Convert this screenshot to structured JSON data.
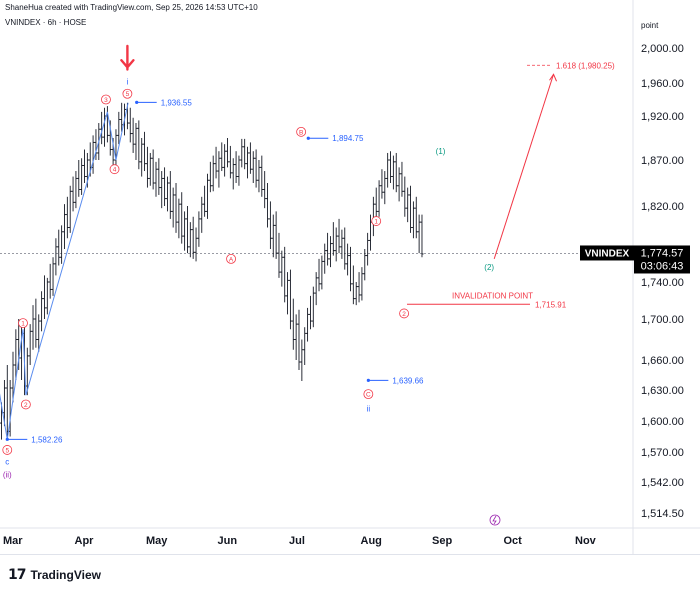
{
  "header": {
    "created": "ShaneHua created with TradingView.com, Sep 25, 2026 14:53 UTC+10"
  },
  "footer": {
    "brand": "TradingView",
    "brand_mark": "17"
  },
  "chart_data": {
    "type": "candlestick",
    "symbol_line": "VNINDEX · 6h · HOSE",
    "price_axis_label": "point",
    "y_ticks": [
      "2,000.00",
      "1,960.00",
      "1,920.00",
      "1,870.00",
      "1,820.00",
      "1,780.00",
      "1,740.00",
      "1,700.00",
      "1,660.00",
      "1,630.00",
      "1,600.00",
      "1,570.00",
      "1,542.00",
      "1,514.50"
    ],
    "x_ticks": [
      "Mar",
      "Apr",
      "May",
      "Jun",
      "Jul",
      "Aug",
      "Sep",
      "Oct",
      "Nov"
    ],
    "last_price": {
      "symbol": "VNINDEX",
      "value": "1,774.57",
      "countdown": "03:06:43"
    },
    "price_labels": [
      {
        "text": "1,936.55",
        "price": 1936.55,
        "month": 1.73
      },
      {
        "text": "1,894.75",
        "price": 1894.75,
        "month": 4.13
      },
      {
        "text": "1,582.26",
        "price": 1582.26,
        "month": -0.08
      },
      {
        "text": "1,639.66",
        "price": 1639.66,
        "month": 4.97
      },
      {
        "text": "1,715.91",
        "price": 1715.91,
        "month": 5.85
      }
    ],
    "annotations": {
      "invalidation": "INVALIDATION POINT",
      "invalidation_price": "1,715.91",
      "fib_target": "1.618 (1,980.25)",
      "fib_price": 1980.25,
      "wave_labels": [
        {
          "text": "2",
          "kind": "circle-red",
          "price": 1904,
          "month": -1.05
        },
        {
          "text": "3",
          "kind": "circle-red",
          "price": 1608,
          "month": -0.73
        },
        {
          "text": "4",
          "kind": "circle-red",
          "price": 1754,
          "month": -0.47
        },
        {
          "text": "5",
          "kind": "circle-red",
          "price": 1572,
          "month": -0.08
        },
        {
          "text": "c",
          "kind": "plain-blue",
          "price": 1561,
          "month": -0.08
        },
        {
          "text": "(ii)",
          "kind": "plain-purple",
          "price": 1549,
          "month": -0.08
        },
        {
          "text": "1",
          "kind": "circle-red",
          "price": 1696,
          "month": 0.14
        },
        {
          "text": "2",
          "kind": "circle-red",
          "price": 1616,
          "month": 0.18
        },
        {
          "text": "3",
          "kind": "circle-red",
          "price": 1940,
          "month": 1.3
        },
        {
          "text": "4",
          "kind": "circle-red",
          "price": 1860,
          "month": 1.42
        },
        {
          "text": "5",
          "kind": "circle-red",
          "price": 1947,
          "month": 1.6
        },
        {
          "text": "i",
          "kind": "plain-blue",
          "price": 1962,
          "month": 1.6
        },
        {
          "text": "A",
          "kind": "circle-red",
          "price": 1768,
          "month": 3.05
        },
        {
          "text": "B",
          "kind": "circle-red",
          "price": 1902,
          "month": 4.03
        },
        {
          "text": "C",
          "kind": "circle-red",
          "price": 1626,
          "month": 4.97
        },
        {
          "text": "ii",
          "kind": "plain-blue",
          "price": 1612,
          "month": 4.97
        },
        {
          "text": "1",
          "kind": "circle-red",
          "price": 1806,
          "month": 5.08
        },
        {
          "text": "2",
          "kind": "circle-red",
          "price": 1706,
          "month": 5.47
        },
        {
          "text": "(1)",
          "kind": "plain-green",
          "price": 1880,
          "month": 5.98
        },
        {
          "text": "(2)",
          "kind": "plain-green",
          "price": 1758,
          "month": 6.66
        }
      ]
    },
    "colors": {
      "red": "#f23645",
      "blue": "#2962ff",
      "green": "#089981",
      "purple": "#9c27b0",
      "candle": "#131722",
      "line_blue": "#5b8def"
    },
    "wave_path": [
      [
        -1.09,
        1898
      ],
      [
        -0.73,
        1630
      ],
      [
        -0.47,
        1750
      ],
      [
        -0.08,
        1582
      ],
      [
        0.14,
        1690
      ],
      [
        0.18,
        1625
      ],
      [
        1.32,
        1925
      ],
      [
        1.44,
        1870
      ],
      [
        1.61,
        1936
      ]
    ],
    "target_path": [
      [
        6.73,
        1768
      ],
      [
        7.56,
        1970
      ]
    ],
    "candles": [
      [
        -1.09,
        1820,
        1898,
        1808,
        1858
      ],
      [
        -1.05,
        1858,
        1900,
        1840,
        1870
      ],
      [
        -1.0,
        1870,
        1886,
        1806,
        1812
      ],
      [
        -0.96,
        1812,
        1845,
        1745,
        1775
      ],
      [
        -0.92,
        1775,
        1830,
        1748,
        1810
      ],
      [
        -0.88,
        1810,
        1825,
        1720,
        1735
      ],
      [
        -0.84,
        1735,
        1765,
        1680,
        1700
      ],
      [
        -0.8,
        1700,
        1740,
        1640,
        1660
      ],
      [
        -0.76,
        1660,
        1720,
        1625,
        1715
      ],
      [
        -0.72,
        1715,
        1745,
        1650,
        1668
      ],
      [
        -0.68,
        1668,
        1735,
        1655,
        1726
      ],
      [
        -0.64,
        1726,
        1752,
        1690,
        1702
      ],
      [
        -0.6,
        1702,
        1740,
        1675,
        1688
      ],
      [
        -0.56,
        1688,
        1710,
        1642,
        1652
      ],
      [
        -0.52,
        1652,
        1698,
        1625,
        1690
      ],
      [
        -0.48,
        1690,
        1720,
        1660,
        1668
      ],
      [
        -0.44,
        1668,
        1690,
        1612,
        1622
      ],
      [
        -0.4,
        1622,
        1665,
        1600,
        1655
      ],
      [
        -0.36,
        1655,
        1680,
        1605,
        1612
      ],
      [
        -0.32,
        1612,
        1650,
        1592,
        1640
      ],
      [
        -0.28,
        1640,
        1668,
        1615,
        1620
      ],
      [
        -0.24,
        1620,
        1645,
        1598,
        1604
      ],
      [
        -0.2,
        1604,
        1630,
        1586,
        1598
      ],
      [
        -0.16,
        1598,
        1618,
        1582,
        1608
      ],
      [
        -0.12,
        1608,
        1640,
        1595,
        1632
      ],
      [
        -0.08,
        1632,
        1655,
        1582,
        1590
      ],
      [
        -0.04,
        1590,
        1640,
        1585,
        1632
      ],
      [
        0.0,
        1632,
        1668,
        1618,
        1655
      ],
      [
        0.04,
        1655,
        1690,
        1640,
        1680
      ],
      [
        0.08,
        1680,
        1700,
        1650,
        1662
      ],
      [
        0.12,
        1662,
        1692,
        1640,
        1686
      ],
      [
        0.16,
        1686,
        1700,
        1625,
        1634
      ],
      [
        0.2,
        1634,
        1672,
        1625,
        1664
      ],
      [
        0.24,
        1664,
        1695,
        1655,
        1688
      ],
      [
        0.28,
        1688,
        1715,
        1670,
        1700
      ],
      [
        0.32,
        1700,
        1722,
        1672,
        1680
      ],
      [
        0.36,
        1680,
        1705,
        1668,
        1698
      ],
      [
        0.4,
        1698,
        1730,
        1688,
        1722
      ],
      [
        0.44,
        1722,
        1748,
        1700,
        1712
      ],
      [
        0.48,
        1712,
        1745,
        1705,
        1740
      ],
      [
        0.52,
        1740,
        1762,
        1722,
        1732
      ],
      [
        0.56,
        1732,
        1770,
        1725,
        1762
      ],
      [
        0.6,
        1762,
        1790,
        1748,
        1782
      ],
      [
        0.64,
        1782,
        1798,
        1760,
        1770
      ],
      [
        0.68,
        1770,
        1802,
        1762,
        1796
      ],
      [
        0.72,
        1796,
        1822,
        1780,
        1812
      ],
      [
        0.76,
        1812,
        1830,
        1790,
        1800
      ],
      [
        0.8,
        1800,
        1842,
        1795,
        1836
      ],
      [
        0.84,
        1836,
        1852,
        1815,
        1824
      ],
      [
        0.88,
        1824,
        1858,
        1818,
        1850
      ],
      [
        0.92,
        1850,
        1870,
        1830,
        1838
      ],
      [
        0.96,
        1838,
        1872,
        1832,
        1864
      ],
      [
        1.0,
        1864,
        1882,
        1845,
        1852
      ],
      [
        1.04,
        1852,
        1878,
        1840,
        1870
      ],
      [
        1.08,
        1870,
        1890,
        1852,
        1862
      ],
      [
        1.12,
        1862,
        1898,
        1855,
        1890
      ],
      [
        1.16,
        1890,
        1905,
        1870,
        1878
      ],
      [
        1.2,
        1878,
        1912,
        1870,
        1905
      ],
      [
        1.24,
        1905,
        1925,
        1888,
        1896
      ],
      [
        1.28,
        1896,
        1930,
        1885,
        1920
      ],
      [
        1.32,
        1920,
        1932,
        1890,
        1898
      ],
      [
        1.36,
        1898,
        1915,
        1875,
        1882
      ],
      [
        1.4,
        1882,
        1895,
        1860,
        1870
      ],
      [
        1.44,
        1870,
        1905,
        1862,
        1898
      ],
      [
        1.48,
        1898,
        1925,
        1888,
        1916
      ],
      [
        1.52,
        1916,
        1936,
        1902,
        1910
      ],
      [
        1.56,
        1910,
        1935,
        1898,
        1928
      ],
      [
        1.6,
        1928,
        1936,
        1905,
        1912
      ],
      [
        1.64,
        1912,
        1930,
        1890,
        1900
      ],
      [
        1.68,
        1900,
        1918,
        1878,
        1888
      ],
      [
        1.72,
        1888,
        1912,
        1870,
        1906
      ],
      [
        1.76,
        1906,
        1915,
        1860,
        1868
      ],
      [
        1.8,
        1868,
        1895,
        1852,
        1888
      ],
      [
        1.84,
        1888,
        1902,
        1858,
        1866
      ],
      [
        1.88,
        1866,
        1885,
        1840,
        1850
      ],
      [
        1.92,
        1850,
        1878,
        1842,
        1872
      ],
      [
        1.96,
        1872,
        1882,
        1838,
        1845
      ],
      [
        2.0,
        1845,
        1868,
        1830,
        1860
      ],
      [
        2.04,
        1860,
        1872,
        1832,
        1840
      ],
      [
        2.08,
        1840,
        1858,
        1818,
        1850
      ],
      [
        2.12,
        1850,
        1862,
        1820,
        1828
      ],
      [
        2.16,
        1828,
        1852,
        1815,
        1845
      ],
      [
        2.2,
        1845,
        1858,
        1808,
        1815
      ],
      [
        2.24,
        1815,
        1840,
        1800,
        1832
      ],
      [
        2.28,
        1832,
        1845,
        1795,
        1805
      ],
      [
        2.32,
        1805,
        1828,
        1790,
        1822
      ],
      [
        2.36,
        1822,
        1835,
        1785,
        1792
      ],
      [
        2.4,
        1792,
        1815,
        1778,
        1808
      ],
      [
        2.44,
        1808,
        1820,
        1775,
        1782
      ],
      [
        2.48,
        1782,
        1805,
        1770,
        1798
      ],
      [
        2.52,
        1798,
        1810,
        1768,
        1776
      ],
      [
        2.56,
        1776,
        1800,
        1765,
        1790
      ],
      [
        2.6,
        1790,
        1815,
        1782,
        1808
      ],
      [
        2.64,
        1808,
        1830,
        1795,
        1822
      ],
      [
        2.68,
        1822,
        1842,
        1810,
        1815
      ],
      [
        2.72,
        1815,
        1855,
        1808,
        1848
      ],
      [
        2.76,
        1848,
        1868,
        1835,
        1842
      ],
      [
        2.8,
        1842,
        1875,
        1836,
        1866
      ],
      [
        2.84,
        1866,
        1885,
        1850,
        1858
      ],
      [
        2.88,
        1858,
        1880,
        1840,
        1872
      ],
      [
        2.92,
        1872,
        1890,
        1858,
        1862
      ],
      [
        2.96,
        1862,
        1888,
        1852,
        1880
      ],
      [
        3.0,
        1880,
        1895,
        1862,
        1868
      ],
      [
        3.04,
        1868,
        1886,
        1850,
        1856
      ],
      [
        3.08,
        1856,
        1872,
        1838,
        1865
      ],
      [
        3.12,
        1865,
        1880,
        1845,
        1852
      ],
      [
        3.16,
        1852,
        1875,
        1842,
        1870
      ],
      [
        3.2,
        1870,
        1894,
        1862,
        1885
      ],
      [
        3.24,
        1885,
        1894,
        1860,
        1866
      ],
      [
        3.28,
        1866,
        1885,
        1850,
        1878
      ],
      [
        3.32,
        1878,
        1890,
        1855,
        1860
      ],
      [
        3.36,
        1860,
        1880,
        1845,
        1872
      ],
      [
        3.4,
        1872,
        1882,
        1840,
        1848
      ],
      [
        3.44,
        1848,
        1870,
        1835,
        1862
      ],
      [
        3.48,
        1862,
        1875,
        1830,
        1838
      ],
      [
        3.52,
        1838,
        1858,
        1818,
        1828
      ],
      [
        3.56,
        1828,
        1845,
        1800,
        1808
      ],
      [
        3.6,
        1808,
        1825,
        1780,
        1790
      ],
      [
        3.64,
        1790,
        1812,
        1770,
        1802
      ],
      [
        3.68,
        1802,
        1815,
        1768,
        1775
      ],
      [
        3.72,
        1775,
        1795,
        1745,
        1752
      ],
      [
        3.76,
        1752,
        1778,
        1735,
        1770
      ],
      [
        3.8,
        1770,
        1782,
        1718,
        1725
      ],
      [
        3.84,
        1725,
        1752,
        1705,
        1742
      ],
      [
        3.88,
        1742,
        1755,
        1690,
        1698
      ],
      [
        3.92,
        1698,
        1722,
        1670,
        1680
      ],
      [
        3.96,
        1680,
        1705,
        1660,
        1695
      ],
      [
        4.0,
        1695,
        1710,
        1650,
        1658
      ],
      [
        4.04,
        1658,
        1680,
        1639,
        1670
      ],
      [
        4.08,
        1670,
        1692,
        1655,
        1686
      ],
      [
        4.12,
        1686,
        1712,
        1678,
        1705
      ],
      [
        4.16,
        1705,
        1725,
        1690,
        1698
      ],
      [
        4.2,
        1698,
        1735,
        1692,
        1728
      ],
      [
        4.24,
        1728,
        1752,
        1715,
        1745
      ],
      [
        4.28,
        1745,
        1768,
        1730,
        1738
      ],
      [
        4.32,
        1738,
        1772,
        1732,
        1765
      ],
      [
        4.36,
        1765,
        1785,
        1750,
        1778
      ],
      [
        4.4,
        1778,
        1795,
        1760,
        1768
      ],
      [
        4.44,
        1768,
        1792,
        1758,
        1785
      ],
      [
        4.48,
        1785,
        1805,
        1772,
        1778
      ],
      [
        4.52,
        1778,
        1800,
        1765,
        1792
      ],
      [
        4.56,
        1792,
        1808,
        1775,
        1782
      ],
      [
        4.6,
        1782,
        1798,
        1768,
        1790
      ],
      [
        4.64,
        1790,
        1800,
        1755,
        1762
      ],
      [
        4.68,
        1762,
        1785,
        1748,
        1772
      ],
      [
        4.72,
        1772,
        1782,
        1730,
        1738
      ],
      [
        4.76,
        1738,
        1760,
        1716,
        1722
      ],
      [
        4.8,
        1722,
        1740,
        1715,
        1735
      ],
      [
        4.84,
        1735,
        1752,
        1718,
        1726
      ],
      [
        4.88,
        1726,
        1758,
        1720,
        1750
      ],
      [
        4.92,
        1750,
        1780,
        1742,
        1772
      ],
      [
        4.96,
        1772,
        1795,
        1760,
        1788
      ],
      [
        5.0,
        1788,
        1812,
        1778,
        1805
      ],
      [
        5.04,
        1805,
        1830,
        1792,
        1822
      ],
      [
        5.08,
        1822,
        1840,
        1808,
        1815
      ],
      [
        5.12,
        1815,
        1848,
        1810,
        1842
      ],
      [
        5.16,
        1842,
        1860,
        1828,
        1835
      ],
      [
        5.2,
        1835,
        1858,
        1822,
        1850
      ],
      [
        5.24,
        1850,
        1878,
        1840,
        1870
      ],
      [
        5.28,
        1870,
        1880,
        1845,
        1852
      ],
      [
        5.32,
        1852,
        1875,
        1838,
        1868
      ],
      [
        5.36,
        1868,
        1878,
        1835,
        1842
      ],
      [
        5.4,
        1842,
        1862,
        1825,
        1855
      ],
      [
        5.44,
        1855,
        1868,
        1830,
        1836
      ],
      [
        5.48,
        1836,
        1852,
        1810,
        1818
      ],
      [
        5.52,
        1818,
        1840,
        1805,
        1832
      ],
      [
        5.56,
        1832,
        1842,
        1795,
        1800
      ],
      [
        5.6,
        1800,
        1825,
        1790,
        1818
      ],
      [
        5.64,
        1818,
        1830,
        1790,
        1796
      ],
      [
        5.68,
        1796,
        1812,
        1775,
        1805
      ],
      [
        5.72,
        1805,
        1812,
        1770,
        1774
      ]
    ]
  }
}
